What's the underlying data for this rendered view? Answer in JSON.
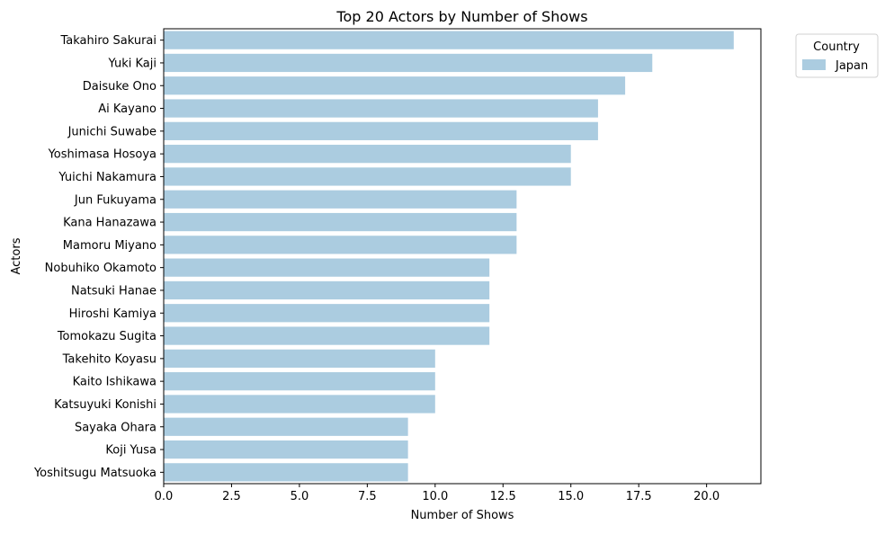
{
  "chart_data": {
    "type": "bar",
    "orientation": "horizontal",
    "title": "Top 20 Actors by Number of Shows",
    "xlabel": "Number of Shows",
    "ylabel": "Actors",
    "xlim": [
      0,
      22
    ],
    "xticks": [
      0.0,
      2.5,
      5.0,
      7.5,
      10.0,
      12.5,
      15.0,
      17.5,
      20.0
    ],
    "xtick_labels": [
      "0.0",
      "2.5",
      "5.0",
      "7.5",
      "10.0",
      "12.5",
      "15.0",
      "17.5",
      "20.0"
    ],
    "grid": false,
    "categories": [
      "Takahiro Sakurai",
      "Yuki Kaji",
      "Daisuke Ono",
      "Ai Kayano",
      "Junichi Suwabe",
      "Yoshimasa Hosoya",
      "Yuichi Nakamura",
      "Jun Fukuyama",
      "Kana Hanazawa",
      "Mamoru Miyano",
      "Nobuhiko Okamoto",
      "Natsuki Hanae",
      "Hiroshi Kamiya",
      "Tomokazu Sugita",
      "Takehito Koyasu",
      "Kaito Ishikawa",
      "Katsuyuki Konishi",
      "Sayaka Ohara",
      "Koji Yusa",
      "Yoshitsugu Matsuoka"
    ],
    "series": [
      {
        "name": "Japan",
        "color": "#abcce0",
        "values": [
          21,
          18,
          17,
          16,
          16,
          15,
          15,
          13,
          13,
          13,
          12,
          12,
          12,
          12,
          10,
          10,
          10,
          9,
          9,
          9
        ]
      }
    ],
    "legend": {
      "title": "Country",
      "placement": "outside-top-right"
    }
  }
}
